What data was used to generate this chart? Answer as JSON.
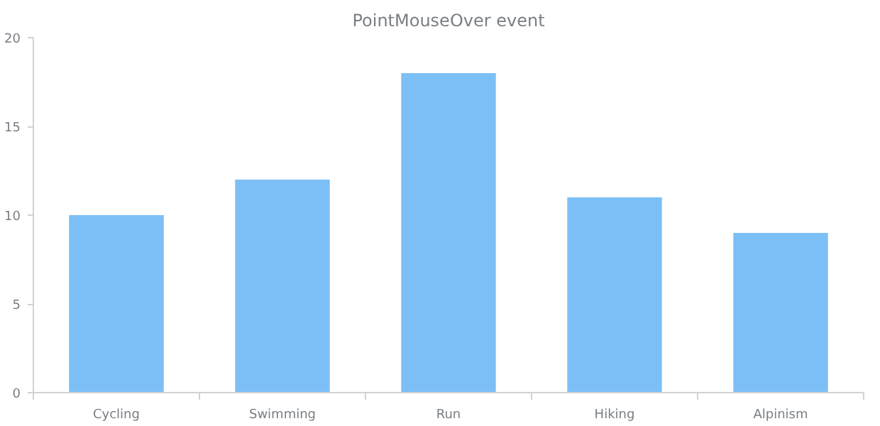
{
  "chart_data": {
    "type": "bar",
    "title": "PointMouseOver event",
    "categories": [
      "Cycling",
      "Swimming",
      "Run",
      "Hiking",
      "Alpinism"
    ],
    "values": [
      10,
      12,
      18,
      11,
      9
    ],
    "color": "#7cbff6",
    "ylim": [
      0,
      20
    ],
    "yticks": [
      0,
      5,
      10,
      15,
      20
    ],
    "grid": false
  }
}
